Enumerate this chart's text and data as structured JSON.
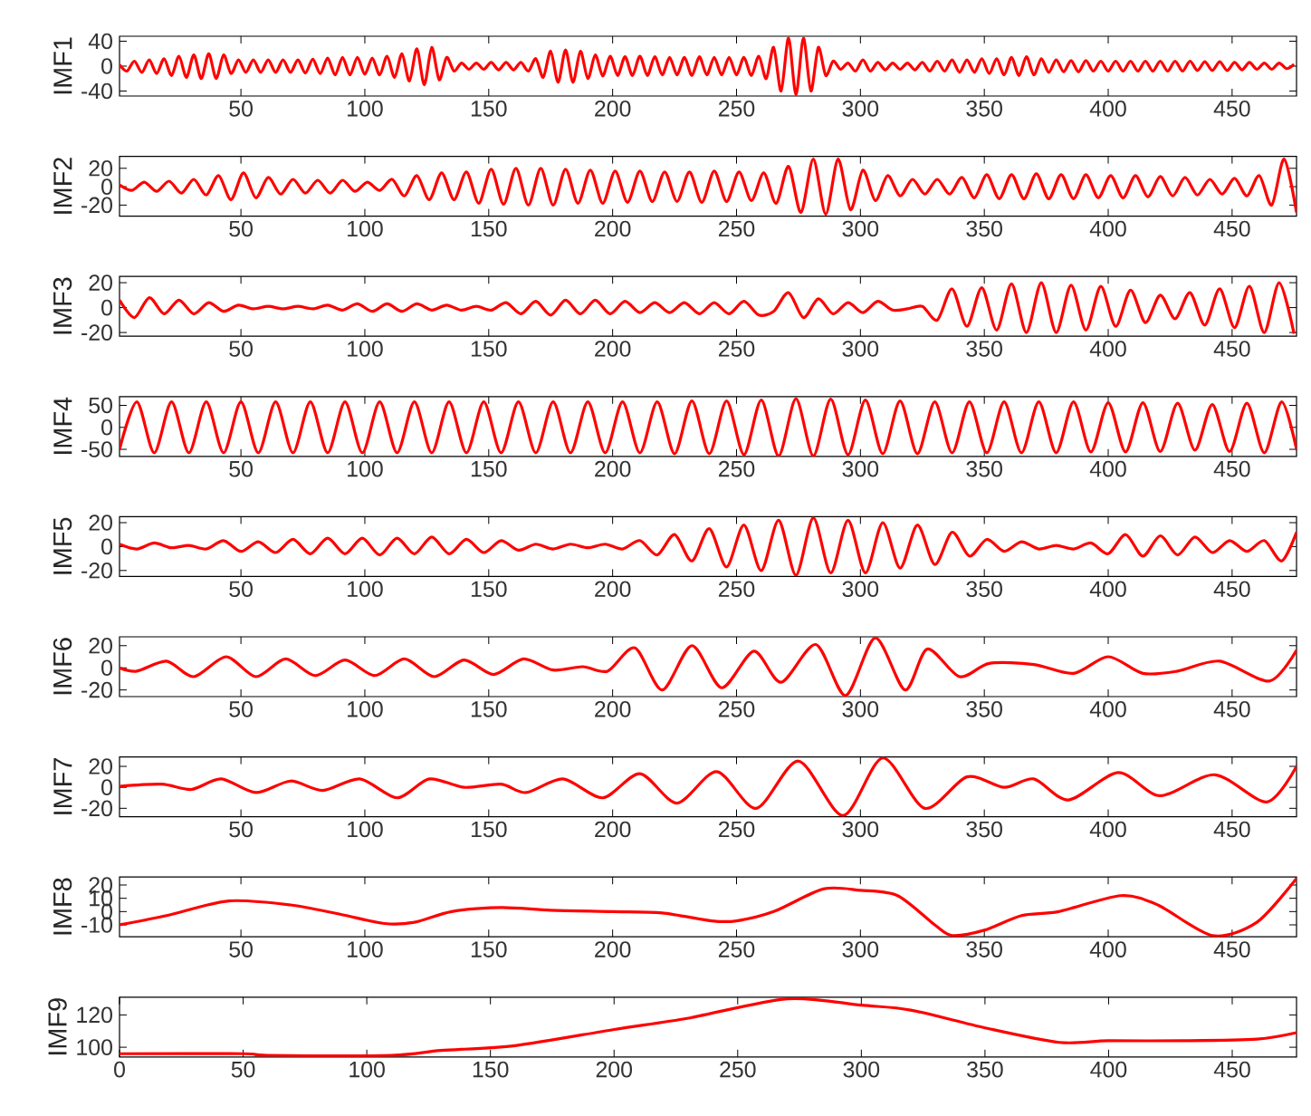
{
  "chart_data": [
    {
      "type": "line",
      "ylabel": "IMF1",
      "color": "#ff0000",
      "xlim": [
        1,
        476
      ],
      "ylim": [
        -48,
        48
      ],
      "xticks": [
        50,
        100,
        150,
        200,
        250,
        300,
        350,
        400,
        450
      ],
      "yticks": [
        -40,
        0,
        40
      ],
      "x": [
        1,
        4,
        7,
        10,
        13,
        16,
        19,
        22,
        25,
        28,
        31,
        34,
        37,
        40,
        43,
        46,
        49,
        52,
        55,
        58,
        61,
        64,
        67,
        70,
        73,
        76,
        79,
        82,
        85,
        88,
        91,
        94,
        97,
        100,
        103,
        106,
        109,
        112,
        115,
        118,
        121,
        124,
        127,
        130,
        133,
        136,
        139,
        142,
        145,
        148,
        151,
        154,
        157,
        160,
        163,
        166,
        169,
        172,
        175,
        178,
        181,
        184,
        187,
        190,
        193,
        196,
        199,
        202,
        205,
        208,
        211,
        214,
        217,
        220,
        223,
        226,
        229,
        232,
        235,
        238,
        241,
        244,
        247,
        250,
        253,
        256,
        259,
        262,
        265,
        268,
        271,
        274,
        277,
        280,
        283,
        286,
        289,
        292,
        295,
        298,
        301,
        304,
        307,
        310,
        313,
        316,
        319,
        322,
        325,
        328,
        331,
        334,
        337,
        340,
        343,
        346,
        349,
        352,
        355,
        358,
        361,
        364,
        367,
        370,
        373,
        376,
        379,
        382,
        385,
        388,
        391,
        394,
        397,
        400,
        403,
        406,
        409,
        412,
        415,
        418,
        421,
        424,
        427,
        430,
        433,
        436,
        439,
        442,
        445,
        448,
        451,
        454,
        457,
        460,
        463,
        466,
        469,
        472,
        475
      ],
      "values": [
        2,
        -8,
        8,
        -10,
        10,
        -12,
        12,
        -15,
        16,
        -18,
        18,
        -20,
        20,
        -20,
        18,
        -12,
        10,
        -10,
        10,
        -10,
        10,
        -10,
        10,
        -10,
        10,
        -11,
        11,
        -12,
        13,
        -14,
        14,
        -14,
        14,
        -13,
        13,
        -14,
        16,
        -18,
        20,
        -24,
        28,
        -30,
        30,
        -22,
        14,
        -8,
        5,
        -5,
        5,
        -5,
        6,
        -6,
        6,
        -6,
        6,
        -8,
        12,
        -18,
        24,
        -26,
        26,
        -26,
        24,
        -20,
        18,
        -16,
        16,
        -15,
        15,
        -15,
        16,
        -15,
        15,
        -14,
        14,
        -14,
        14,
        -15,
        15,
        -14,
        14,
        -14,
        14,
        -14,
        14,
        -15,
        16,
        -20,
        30,
        -40,
        45,
        -46,
        45,
        -40,
        30,
        -15,
        8,
        -5,
        5,
        -8,
        10,
        -8,
        6,
        -6,
        5,
        -5,
        5,
        -6,
        6,
        -8,
        8,
        -8,
        10,
        -10,
        10,
        -10,
        12,
        -12,
        12,
        -14,
        14,
        -15,
        15,
        -14,
        12,
        -10,
        10,
        -9,
        9,
        -9,
        9,
        -8,
        8,
        -8,
        8,
        -8,
        8,
        -8,
        8,
        -8,
        8,
        -8,
        8,
        -8,
        8,
        -7,
        7,
        -7,
        7,
        -7,
        6,
        -6,
        6,
        -5,
        5,
        -5,
        5,
        -4,
        3
      ]
    },
    {
      "type": "line",
      "ylabel": "IMF2",
      "color": "#ff0000",
      "xlim": [
        1,
        476
      ],
      "ylim": [
        -32,
        33
      ],
      "xticks": [
        50,
        100,
        150,
        200,
        250,
        300,
        350,
        400,
        450
      ],
      "yticks": [
        -20,
        0,
        20
      ],
      "x": [
        1,
        6,
        11,
        16,
        21,
        26,
        31,
        36,
        41,
        46,
        51,
        56,
        61,
        66,
        71,
        76,
        81,
        86,
        91,
        96,
        101,
        106,
        111,
        116,
        121,
        126,
        131,
        136,
        141,
        146,
        151,
        156,
        161,
        166,
        171,
        176,
        181,
        186,
        191,
        196,
        201,
        206,
        211,
        216,
        221,
        226,
        231,
        236,
        241,
        246,
        251,
        256,
        261,
        266,
        271,
        276,
        281,
        286,
        291,
        296,
        301,
        306,
        311,
        316,
        321,
        326,
        331,
        336,
        341,
        346,
        351,
        356,
        361,
        366,
        371,
        376,
        381,
        386,
        391,
        396,
        401,
        406,
        411,
        416,
        421,
        426,
        431,
        436,
        441,
        446,
        451,
        456,
        461,
        466,
        471,
        476
      ],
      "values": [
        2,
        -4,
        5,
        -5,
        6,
        -7,
        8,
        -9,
        12,
        -14,
        15,
        -12,
        10,
        -8,
        8,
        -7,
        7,
        -7,
        7,
        -5,
        5,
        -4,
        8,
        -10,
        12,
        -14,
        15,
        -14,
        16,
        -18,
        19,
        -19,
        20,
        -20,
        20,
        -20,
        19,
        -18,
        18,
        -18,
        17,
        -17,
        17,
        -16,
        16,
        -16,
        16,
        -17,
        17,
        -16,
        16,
        -15,
        15,
        -18,
        22,
        -28,
        30,
        -30,
        30,
        -25,
        18,
        -15,
        12,
        -10,
        8,
        -8,
        8,
        -8,
        10,
        -12,
        13,
        -13,
        13,
        -13,
        14,
        -13,
        13,
        -13,
        13,
        -12,
        12,
        -12,
        12,
        -11,
        11,
        -10,
        10,
        -9,
        8,
        -8,
        9,
        -10,
        12,
        -20,
        30,
        -28
      ]
    },
    {
      "type": "line",
      "ylabel": "IMF3",
      "color": "#ff0000",
      "xlim": [
        1,
        476
      ],
      "ylim": [
        -23,
        25
      ],
      "xticks": [
        50,
        100,
        150,
        200,
        250,
        300,
        350,
        400,
        450
      ],
      "yticks": [
        -20,
        0,
        20
      ],
      "x": [
        1,
        7,
        13,
        19,
        25,
        31,
        37,
        43,
        49,
        55,
        61,
        67,
        73,
        79,
        85,
        91,
        97,
        103,
        109,
        115,
        121,
        127,
        133,
        139,
        145,
        151,
        157,
        163,
        169,
        175,
        181,
        187,
        193,
        199,
        205,
        211,
        217,
        223,
        229,
        235,
        241,
        247,
        253,
        259,
        265,
        271,
        277,
        283,
        289,
        295,
        301,
        307,
        313,
        319,
        325,
        331,
        337,
        343,
        349,
        355,
        361,
        367,
        373,
        379,
        385,
        391,
        397,
        403,
        409,
        415,
        421,
        427,
        433,
        439,
        445,
        451,
        457,
        463,
        469,
        475
      ],
      "values": [
        6,
        -8,
        8,
        -5,
        6,
        -5,
        4,
        -3,
        2,
        -1,
        1,
        -1,
        1,
        -1,
        2,
        -2,
        3,
        -3,
        3,
        -3,
        3,
        -2,
        2,
        -2,
        1,
        -2,
        4,
        -5,
        5,
        -6,
        6,
        -5,
        6,
        -5,
        5,
        -4,
        4,
        -4,
        4,
        -5,
        4,
        -5,
        5,
        -6,
        -3,
        12,
        -8,
        7,
        -5,
        4,
        -4,
        5,
        -2,
        -1,
        1,
        -10,
        15,
        -15,
        16,
        -18,
        19,
        -20,
        20,
        -20,
        18,
        -18,
        17,
        -15,
        14,
        -12,
        10,
        -9,
        12,
        -14,
        15,
        -16,
        17,
        -20,
        20,
        -21
      ]
    },
    {
      "type": "line",
      "ylabel": "IMF4",
      "color": "#ff0000",
      "xlim": [
        1,
        476
      ],
      "ylim": [
        -66,
        70
      ],
      "xticks": [
        50,
        100,
        150,
        200,
        250,
        300,
        350,
        400,
        450
      ],
      "yticks": [
        -50,
        0,
        50
      ],
      "x": [
        1,
        8,
        15,
        22,
        29,
        36,
        43,
        50,
        57,
        64,
        71,
        78,
        85,
        92,
        99,
        106,
        113,
        120,
        127,
        134,
        141,
        148,
        155,
        162,
        169,
        176,
        183,
        190,
        197,
        204,
        211,
        218,
        225,
        232,
        239,
        246,
        253,
        260,
        267,
        274,
        281,
        288,
        295,
        302,
        309,
        316,
        323,
        330,
        337,
        344,
        351,
        358,
        365,
        372,
        379,
        386,
        393,
        400,
        407,
        414,
        421,
        428,
        435,
        442,
        449,
        456,
        463,
        470,
        476
      ],
      "values": [
        -50,
        58,
        -58,
        58,
        -58,
        58,
        -58,
        58,
        -58,
        58,
        -58,
        58,
        -58,
        58,
        -58,
        58,
        -58,
        58,
        -58,
        58,
        -58,
        58,
        -58,
        58,
        -58,
        58,
        -58,
        58,
        -58,
        58,
        -58,
        58,
        -60,
        60,
        -60,
        60,
        -62,
        62,
        -65,
        65,
        -65,
        64,
        -62,
        62,
        -60,
        60,
        -60,
        58,
        -58,
        58,
        -58,
        58,
        -58,
        58,
        -58,
        58,
        -56,
        56,
        -56,
        56,
        -55,
        55,
        -52,
        52,
        -55,
        55,
        -58,
        58,
        -50
      ]
    },
    {
      "type": "line",
      "ylabel": "IMF5",
      "color": "#ff0000",
      "xlim": [
        1,
        476
      ],
      "ylim": [
        -25,
        25
      ],
      "xticks": [
        50,
        100,
        150,
        200,
        250,
        300,
        350,
        400,
        450
      ],
      "yticks": [
        -20,
        0,
        20
      ],
      "x": [
        1,
        8,
        15,
        22,
        29,
        36,
        43,
        50,
        57,
        64,
        71,
        78,
        85,
        92,
        99,
        106,
        113,
        120,
        127,
        134,
        141,
        148,
        155,
        162,
        169,
        176,
        183,
        190,
        197,
        204,
        211,
        218,
        225,
        232,
        239,
        246,
        253,
        260,
        267,
        274,
        281,
        288,
        295,
        302,
        309,
        316,
        323,
        330,
        337,
        344,
        351,
        358,
        365,
        372,
        379,
        386,
        393,
        400,
        407,
        414,
        421,
        428,
        435,
        442,
        449,
        456,
        463,
        470,
        476
      ],
      "values": [
        2,
        -2,
        3,
        -1,
        1,
        -2,
        5,
        -4,
        4,
        -5,
        6,
        -6,
        7,
        -6,
        7,
        -7,
        7,
        -6,
        8,
        -6,
        6,
        -5,
        5,
        -3,
        2,
        -2,
        2,
        -1,
        2,
        -2,
        5,
        -7,
        10,
        -12,
        15,
        -17,
        18,
        -20,
        22,
        -24,
        24,
        -22,
        22,
        -22,
        20,
        -18,
        18,
        -15,
        12,
        -8,
        6,
        -4,
        4,
        -2,
        1,
        -2,
        3,
        -6,
        10,
        -8,
        9,
        -7,
        8,
        -5,
        5,
        -4,
        5,
        -12,
        12
      ]
    },
    {
      "type": "line",
      "ylabel": "IMF6",
      "color": "#ff0000",
      "xlim": [
        1,
        476
      ],
      "ylim": [
        -26,
        28
      ],
      "xticks": [
        50,
        100,
        150,
        200,
        250,
        300,
        350,
        400,
        450
      ],
      "yticks": [
        -20,
        0,
        20
      ],
      "x": [
        1,
        8,
        20,
        31,
        44,
        56,
        68,
        80,
        92,
        104,
        116,
        128,
        140,
        152,
        164,
        176,
        188,
        198,
        209,
        220,
        232,
        244,
        257,
        268,
        282,
        294,
        306,
        318,
        327,
        340,
        352,
        370,
        386,
        400,
        414,
        428,
        445,
        465,
        476
      ],
      "values": [
        0,
        -3,
        6,
        -8,
        10,
        -8,
        8,
        -7,
        7,
        -7,
        8,
        -8,
        7,
        -6,
        8,
        -2,
        1,
        -3,
        18,
        -20,
        20,
        -18,
        15,
        -13,
        21,
        -25,
        27,
        -20,
        17,
        -8,
        4,
        3,
        -5,
        10,
        -5,
        -3,
        6,
        -12,
        16
      ]
    },
    {
      "type": "line",
      "ylabel": "IMF7",
      "color": "#ff0000",
      "xlim": [
        1,
        476
      ],
      "ylim": [
        -28,
        29
      ],
      "xticks": [
        50,
        100,
        150,
        200,
        250,
        300,
        350,
        400,
        450
      ],
      "yticks": [
        -20,
        0,
        20
      ],
      "x": [
        1,
        18,
        30,
        42,
        56,
        70,
        83,
        98,
        113,
        126,
        140,
        155,
        165,
        180,
        196,
        211,
        226,
        242,
        258,
        275,
        293,
        309,
        326,
        343,
        358,
        370,
        384,
        404,
        421,
        443,
        464,
        476
      ],
      "values": [
        1,
        3,
        -2,
        8,
        -5,
        6,
        -3,
        8,
        -10,
        8,
        0,
        3,
        -5,
        8,
        -10,
        13,
        -15,
        15,
        -20,
        25,
        -27,
        28,
        -20,
        10,
        0,
        8,
        -12,
        14,
        -8,
        12,
        -14,
        20
      ]
    },
    {
      "type": "line",
      "ylabel": "IMF8",
      "color": "#ff0000",
      "xlim": [
        1,
        476
      ],
      "ylim": [
        -19,
        26
      ],
      "xticks": [
        50,
        100,
        150,
        200,
        250,
        300,
        350,
        400,
        450
      ],
      "yticks": [
        -10,
        0,
        10,
        20
      ],
      "x": [
        1,
        20,
        45,
        70,
        90,
        108,
        120,
        135,
        155,
        175,
        200,
        220,
        240,
        250,
        265,
        285,
        300,
        315,
        330,
        337,
        350,
        365,
        380,
        405,
        420,
        442,
        460,
        476
      ],
      "values": [
        -10,
        -3,
        8,
        5,
        -2,
        -9,
        -8,
        0,
        3,
        1,
        0,
        -1,
        -7,
        -7,
        0,
        17,
        16,
        12,
        -10,
        -18,
        -14,
        -3,
        0,
        12,
        5,
        -18,
        -8,
        25
      ]
    },
    {
      "type": "line",
      "ylabel": "IMF9",
      "color": "#ff0000",
      "xlim": [
        0,
        476
      ],
      "ylim": [
        94,
        131
      ],
      "xticks": [
        0,
        50,
        100,
        150,
        200,
        250,
        300,
        350,
        400,
        450
      ],
      "yticks": [
        100,
        120
      ],
      "x": [
        0,
        50,
        60,
        110,
        130,
        160,
        200,
        230,
        270,
        300,
        320,
        350,
        380,
        400,
        430,
        460,
        476
      ],
      "values": [
        96,
        96,
        95,
        95,
        98,
        101,
        111,
        118,
        130,
        126,
        123,
        112,
        103,
        104,
        104,
        105,
        109
      ]
    }
  ]
}
